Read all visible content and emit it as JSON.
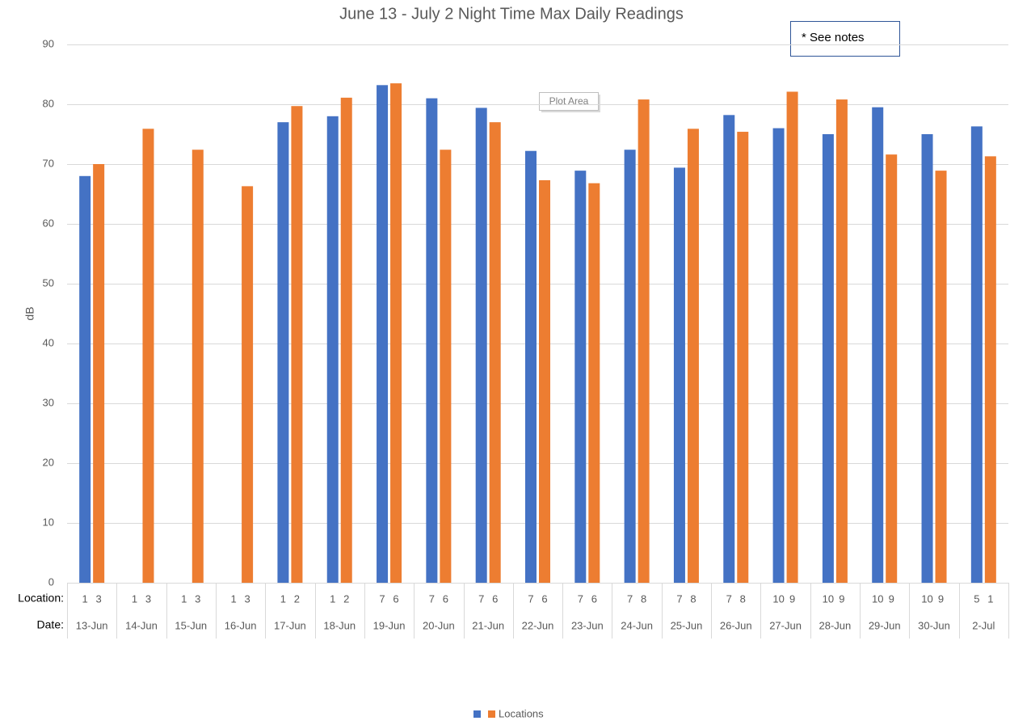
{
  "chart_data": {
    "type": "bar",
    "title": "June 13 - July 2 Night Time Max Daily Readings",
    "y_label": "dB",
    "row_labels": [
      "Location:",
      "Date:"
    ],
    "categories": [
      "13-Jun",
      "14-Jun",
      "15-Jun",
      "16-Jun",
      "17-Jun",
      "18-Jun",
      "19-Jun",
      "20-Jun",
      "21-Jun",
      "22-Jun",
      "23-Jun",
      "24-Jun",
      "25-Jun",
      "26-Jun",
      "27-Jun",
      "28-Jun",
      "29-Jun",
      "30-Jun",
      "2-Jul"
    ],
    "locations": [
      [
        "1",
        "3"
      ],
      [
        "1",
        "3"
      ],
      [
        "1",
        "3"
      ],
      [
        "1",
        "3"
      ],
      [
        "1",
        "2"
      ],
      [
        "1",
        "2"
      ],
      [
        "7",
        "6"
      ],
      [
        "7",
        "6"
      ],
      [
        "7",
        "6"
      ],
      [
        "7",
        "6"
      ],
      [
        "7",
        "6"
      ],
      [
        "7",
        "8"
      ],
      [
        "7",
        "8"
      ],
      [
        "7",
        "8"
      ],
      [
        "10",
        "9"
      ],
      [
        "10",
        "9"
      ],
      [
        "10",
        "9"
      ],
      [
        "10",
        "9"
      ],
      [
        "5",
        "1"
      ]
    ],
    "series": [
      {
        "color": "#4472c4",
        "values": [
          68,
          null,
          null,
          null,
          77,
          78,
          83.2,
          81,
          79.4,
          72.2,
          68.9,
          72.4,
          69.4,
          78.2,
          76,
          75,
          79.5,
          75,
          76.3
        ]
      },
      {
        "name": "Locations",
        "color": "#ed7d31",
        "values": [
          70,
          75.9,
          72.4,
          66.3,
          79.7,
          81.1,
          83.5,
          72.4,
          77,
          67.3,
          66.8,
          80.8,
          75.9,
          75.4,
          82.1,
          80.8,
          71.6,
          68.9,
          71.3
        ]
      }
    ],
    "ylim": [
      0,
      90
    ],
    "yticks": [
      0,
      10,
      20,
      30,
      40,
      50,
      60,
      70,
      80,
      90
    ],
    "grid": true,
    "annotation": "* See notes",
    "tooltip": "Plot Area"
  }
}
